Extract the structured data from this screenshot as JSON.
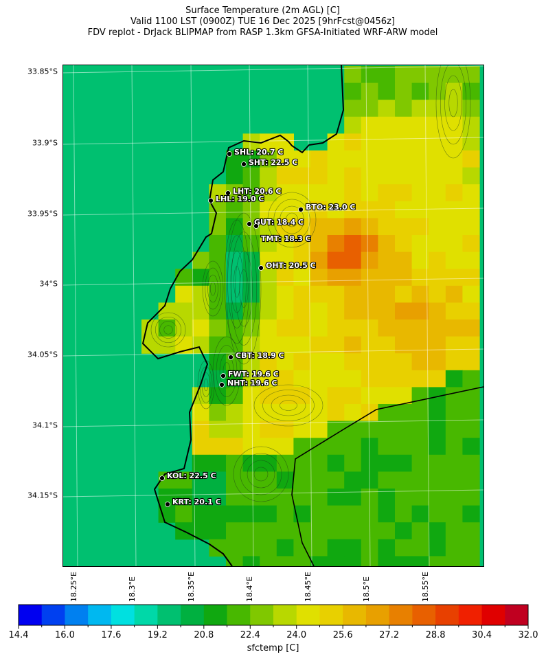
{
  "title": {
    "line1": "Surface Temperature (2m AGL) [C]",
    "line2": "Valid 1100 LST (0900Z) TUE 16 Dec 2025 [9hrFcst@0456z]",
    "line3": "FDV replot - DrJack BLIPMAP from RASP 1.3km GFSA-Initiated WRF-ARW model"
  },
  "axes": {
    "lat_labels": [
      "33.85°S",
      "33.9°S",
      "33.95°S",
      "34°S",
      "34.05°S",
      "34.1°S",
      "34.15°S"
    ],
    "lon_labels": [
      "18.25°E",
      "18.3°E",
      "18.35°E",
      "18.4°E",
      "18.45°E",
      "18.5°E",
      "18.55°E"
    ]
  },
  "stations": [
    {
      "label": "SHL: 20.7 C"
    },
    {
      "label": "SHT: 22.5 C"
    },
    {
      "label": "LHT: 20.6 C"
    },
    {
      "label": "LHL: 19.0 C"
    },
    {
      "label": "BTO: 23.0 C"
    },
    {
      "label": "GUT: 18.4 C"
    },
    {
      "label": "TMT: 18.3 C"
    },
    {
      "label": "OHT: 20.5 C"
    },
    {
      "label": "CBT: 18.9 C"
    },
    {
      "label": "FWT: 19.6 C"
    },
    {
      "label": "NHT: 19.6 C"
    },
    {
      "label": "KOL: 22.5 C"
    },
    {
      "label": "KRT: 20.1 C"
    }
  ],
  "colorbar": {
    "label": "sfctemp [C]",
    "min": 14.4,
    "max": 32.0,
    "step": 0.8,
    "tick_labels": [
      "14.4",
      "16.0",
      "17.6",
      "19.2",
      "20.8",
      "22.4",
      "24.0",
      "25.6",
      "27.2",
      "28.8",
      "30.4",
      "32.0"
    ],
    "colors": [
      "#0000f0",
      "#0040f0",
      "#0080f0",
      "#00b8f0",
      "#00e0e0",
      "#00d8a8",
      "#00c070",
      "#00b040",
      "#10a810",
      "#48b800",
      "#80c800",
      "#b8d800",
      "#e0e000",
      "#e8d000",
      "#e8b800",
      "#e8a000",
      "#e88000",
      "#e86000",
      "#e84000",
      "#f02000",
      "#e00000",
      "#c00020"
    ]
  }
}
